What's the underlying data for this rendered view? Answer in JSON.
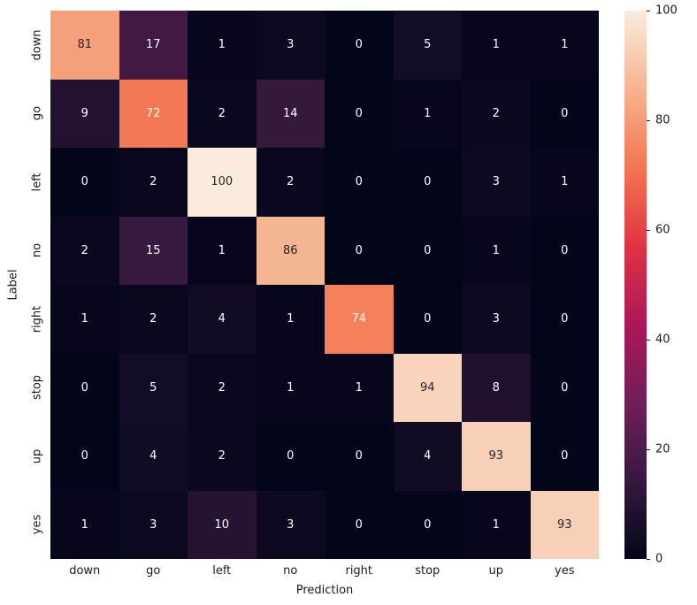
{
  "figure": {
    "background": "#ffffff"
  },
  "chart_data": {
    "type": "heatmap",
    "title": "",
    "xlabel": "Prediction",
    "ylabel": "Label",
    "x_categories": [
      "down",
      "go",
      "left",
      "no",
      "right",
      "stop",
      "up",
      "yes"
    ],
    "y_categories": [
      "down",
      "go",
      "left",
      "no",
      "right",
      "stop",
      "up",
      "yes"
    ],
    "values": [
      [
        81,
        17,
        1,
        3,
        0,
        5,
        1,
        1
      ],
      [
        9,
        72,
        2,
        14,
        0,
        1,
        2,
        0
      ],
      [
        0,
        2,
        100,
        2,
        0,
        0,
        3,
        1
      ],
      [
        2,
        15,
        1,
        86,
        0,
        0,
        1,
        0
      ],
      [
        1,
        2,
        4,
        1,
        74,
        0,
        3,
        0
      ],
      [
        0,
        5,
        2,
        1,
        1,
        94,
        8,
        0
      ],
      [
        0,
        4,
        2,
        0,
        0,
        4,
        93,
        0
      ],
      [
        1,
        3,
        10,
        3,
        0,
        0,
        1,
        93
      ]
    ],
    "vmin": 0,
    "vmax": 100,
    "colorbar_ticks": [
      0,
      20,
      40,
      60,
      80,
      100
    ],
    "colorbar_position": "right",
    "grid": false,
    "colormap": {
      "name": "rocket",
      "anchors": [
        {
          "t": 0.0,
          "color": "#030519"
        },
        {
          "t": 0.143,
          "color": "#35193e"
        },
        {
          "t": 0.286,
          "color": "#701f57"
        },
        {
          "t": 0.429,
          "color": "#ad1759"
        },
        {
          "t": 0.571,
          "color": "#e13342"
        },
        {
          "t": 0.714,
          "color": "#f37651"
        },
        {
          "t": 0.857,
          "color": "#f6b48f"
        },
        {
          "t": 1.0,
          "color": "#faebdd"
        }
      ]
    },
    "annotation_text_colors": {
      "dark": "#262626",
      "light": "#ffffff"
    }
  }
}
